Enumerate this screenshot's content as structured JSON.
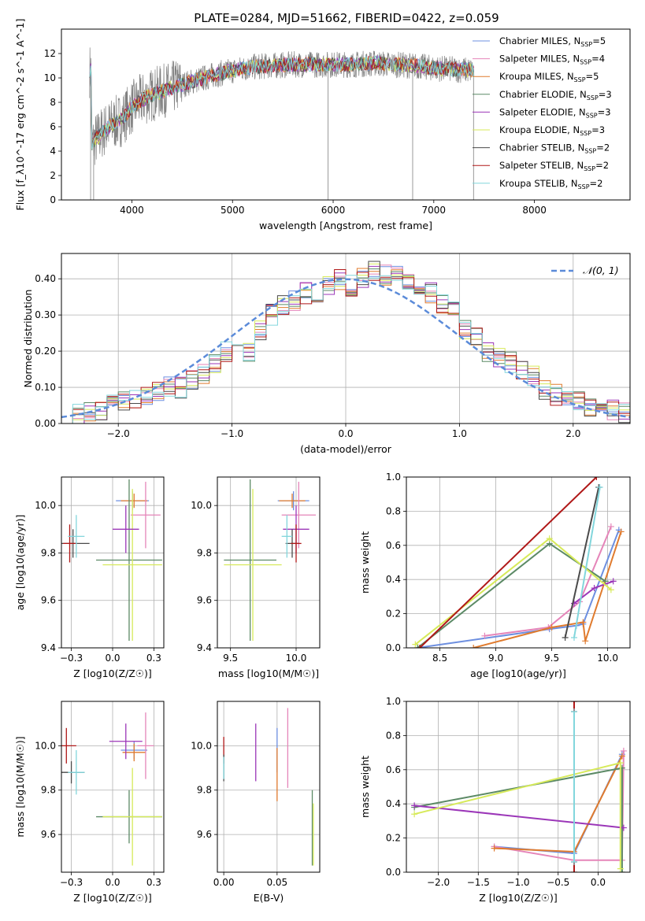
{
  "figure_title": "PLATE=0284, MJD=51662, FIBERID=0422, z=0.059",
  "colors": {
    "Chabrier MILES": "#6d8fe0",
    "Salpeter MILES": "#e585b9",
    "Kroupa MILES": "#e07b2e",
    "Chabrier ELODIE": "#5c8a66",
    "Salpeter ELODIE": "#9b36b8",
    "Kroupa ELODIE": "#d7ea5a",
    "Chabrier STELIB": "#4a4a4a",
    "Salpeter STELIB": "#b01818",
    "Kroupa STELIB": "#82d6dc",
    "data": "#808080",
    "normal": "#5b8bd9"
  },
  "chart_data": [
    {
      "id": "spectrum",
      "type": "line",
      "xlabel": "wavelength [Angstrom, rest frame]",
      "ylabel": "Flux [f_λ10^-17 erg cm^-2 s^-1 A^-1]",
      "xlim": [
        3300,
        8950
      ],
      "ylim": [
        0,
        14
      ],
      "xticks": [
        4000,
        5000,
        6000,
        7000,
        8000
      ],
      "yticks": [
        0,
        2,
        4,
        6,
        8,
        10,
        12
      ],
      "legend_position": "top-right",
      "legend": [
        {
          "model": "Chabrier MILES",
          "label": "Chabrier MILES, N",
          "nssp": "=5"
        },
        {
          "model": "Salpeter MILES",
          "label": "Salpeter MILES, N",
          "nssp": "=4"
        },
        {
          "model": "Kroupa MILES",
          "label": "Kroupa MILES, N",
          "nssp": "=5"
        },
        {
          "model": "Chabrier ELODIE",
          "label": "Chabrier ELODIE, N",
          "nssp": "=3"
        },
        {
          "model": "Salpeter ELODIE",
          "label": "Salpeter ELODIE, N",
          "nssp": "=3"
        },
        {
          "model": "Kroupa ELODIE",
          "label": "Kroupa ELODIE, N",
          "nssp": "=3"
        },
        {
          "model": "Chabrier STELIB",
          "label": "Chabrier STELIB, N",
          "nssp": "=2"
        },
        {
          "model": "Salpeter STELIB",
          "label": "Salpeter STELIB, N",
          "nssp": "=2"
        },
        {
          "model": "Kroupa STELIB",
          "label": "Kroupa STELIB, N",
          "nssp": "=2"
        }
      ],
      "continuum": {
        "x": [
          3600,
          3700,
          3800,
          3900,
          4000,
          4100,
          4200,
          4400,
          4600,
          4800,
          5000,
          5200,
          5400,
          5600,
          5800,
          6000,
          6200,
          6400,
          6600,
          6800,
          7000,
          7200,
          7400
        ],
        "y": [
          4.6,
          5.5,
          6.2,
          6.6,
          7.6,
          8.2,
          8.6,
          9.2,
          9.7,
          10.2,
          10.6,
          10.9,
          11.0,
          11.1,
          11.1,
          11.1,
          11.1,
          11.2,
          11.1,
          11.0,
          10.8,
          10.7,
          10.6
        ]
      },
      "data_range": [
        3580,
        7400
      ],
      "data_spikes": [
        {
          "x": 3590,
          "y": 0
        },
        {
          "x": 3620,
          "y": 0
        },
        {
          "x": 5950,
          "y": 0
        },
        {
          "x": 6790,
          "y": 0
        },
        {
          "x": 7395,
          "y": 0
        }
      ]
    },
    {
      "id": "residuals",
      "type": "area",
      "xlabel": "(data-model)/error",
      "ylabel": "Normed distribution",
      "xlim": [
        -2.5,
        2.5
      ],
      "ylim": [
        0,
        0.47
      ],
      "xticks": [
        -2,
        -1,
        0,
        1,
        2
      ],
      "yticks": [
        0.0,
        0.1,
        0.2,
        0.3,
        0.4
      ],
      "legend_position": "top-right",
      "normal_label": "𝒩(0, 1)",
      "bin_width": 0.1,
      "bin_start": -2.5,
      "hist_base": [
        0.02,
        0.025,
        0.03,
        0.04,
        0.05,
        0.06,
        0.07,
        0.08,
        0.09,
        0.1,
        0.1,
        0.12,
        0.14,
        0.17,
        0.2,
        0.22,
        0.2,
        0.26,
        0.3,
        0.33,
        0.34,
        0.36,
        0.35,
        0.38,
        0.4,
        0.38,
        0.4,
        0.42,
        0.41,
        0.42,
        0.4,
        0.37,
        0.36,
        0.33,
        0.31,
        0.26,
        0.24,
        0.2,
        0.18,
        0.17,
        0.15,
        0.13,
        0.09,
        0.08,
        0.07,
        0.06,
        0.05,
        0.04,
        0.035,
        0.03
      ]
    },
    {
      "id": "age-vs-metallicity",
      "type": "scatter",
      "xlabel": "Z [log10(Z/Z☉)]",
      "ylabel": "age [log10(age/yr)]",
      "xlim": [
        -0.31,
        0.31
      ],
      "ylim": [
        9.4,
        10.12
      ],
      "xticks": [
        -0.25,
        0.0,
        0.25
      ],
      "yticks": [
        9.4,
        9.6,
        9.8,
        10.0
      ],
      "points": [
        {
          "model": "Chabrier MILES",
          "x": 0.12,
          "y": 10.02,
          "xerr": 0.1,
          "yerr": 0.04
        },
        {
          "model": "Kroupa MILES",
          "x": 0.13,
          "y": 10.02,
          "xerr": 0.08,
          "yerr": 0.03
        },
        {
          "model": "Salpeter MILES",
          "x": 0.2,
          "y": 9.96,
          "xerr": 0.09,
          "yerr": 0.14
        },
        {
          "model": "Chabrier ELODIE",
          "x": 0.1,
          "y": 9.77,
          "xerr": 0.2,
          "yerr": 0.34
        },
        {
          "model": "Kroupa ELODIE",
          "x": 0.12,
          "y": 9.75,
          "xerr": 0.18,
          "yerr": 0.32
        },
        {
          "model": "Salpeter ELODIE",
          "x": 0.08,
          "y": 9.9,
          "xerr": 0.08,
          "yerr": 0.1
        },
        {
          "model": "Chabrier STELIB",
          "x": -0.24,
          "y": 9.84,
          "xerr": 0.1,
          "yerr": 0.06
        },
        {
          "model": "Salpeter STELIB",
          "x": -0.26,
          "y": 9.84,
          "xerr": 0.04,
          "yerr": 0.08
        },
        {
          "model": "Kroupa STELIB",
          "x": -0.22,
          "y": 9.87,
          "xerr": 0.05,
          "yerr": 0.09
        }
      ]
    },
    {
      "id": "age-vs-mass",
      "type": "scatter",
      "xlabel": "mass [log10(M/M☉)]",
      "ylabel": "",
      "xlim": [
        9.4,
        10.18
      ],
      "ylim": [
        9.4,
        10.12
      ],
      "xticks": [
        9.5,
        10.0
      ],
      "yticks": [
        9.4,
        9.6,
        9.8,
        10.0
      ],
      "points": [
        {
          "model": "Chabrier MILES",
          "x": 9.98,
          "y": 10.02,
          "xerr": 0.12,
          "yerr": 0.04
        },
        {
          "model": "Kroupa MILES",
          "x": 9.97,
          "y": 10.02,
          "xerr": 0.1,
          "yerr": 0.03
        },
        {
          "model": "Salpeter MILES",
          "x": 10.02,
          "y": 9.96,
          "xerr": 0.13,
          "yerr": 0.14
        },
        {
          "model": "Chabrier ELODIE",
          "x": 9.65,
          "y": 9.77,
          "xerr": 0.2,
          "yerr": 0.34
        },
        {
          "model": "Kroupa ELODIE",
          "x": 9.67,
          "y": 9.75,
          "xerr": 0.22,
          "yerr": 0.32
        },
        {
          "model": "Salpeter ELODIE",
          "x": 10.0,
          "y": 9.9,
          "xerr": 0.1,
          "yerr": 0.1
        },
        {
          "model": "Chabrier STELIB",
          "x": 9.97,
          "y": 9.84,
          "xerr": 0.05,
          "yerr": 0.06
        },
        {
          "model": "Salpeter STELIB",
          "x": 10.0,
          "y": 9.84,
          "xerr": 0.04,
          "yerr": 0.08
        },
        {
          "model": "Kroupa STELIB",
          "x": 9.93,
          "y": 9.87,
          "xerr": 0.04,
          "yerr": 0.09
        }
      ]
    },
    {
      "id": "weight-vs-age",
      "type": "line",
      "xlabel": "age [log10(age/yr)]",
      "ylabel": "mass weight",
      "xlim": [
        8.2,
        10.2
      ],
      "ylim": [
        0,
        1
      ],
      "xticks": [
        8.5,
        9.0,
        9.5,
        10.0
      ],
      "yticks": [
        0.0,
        0.2,
        0.4,
        0.6,
        0.8,
        1.0
      ],
      "series": [
        {
          "model": "Chabrier MILES",
          "x": [
            8.3,
            9.48,
            9.72,
            9.78,
            10.1
          ],
          "y": [
            0.0,
            0.11,
            0.13,
            0.14,
            0.69
          ]
        },
        {
          "model": "Salpeter MILES",
          "x": [
            8.9,
            9.47,
            9.75,
            10.03
          ],
          "y": [
            0.07,
            0.12,
            0.27,
            0.71
          ]
        },
        {
          "model": "Kroupa MILES",
          "x": [
            8.8,
            9.5,
            9.78,
            9.8,
            10.12
          ],
          "y": [
            0.0,
            0.12,
            0.15,
            0.04,
            0.68
          ]
        },
        {
          "model": "Chabrier ELODIE",
          "x": [
            8.3,
            9.48,
            9.98
          ],
          "y": [
            0.0,
            0.61,
            0.39
          ]
        },
        {
          "model": "Salpeter ELODIE",
          "x": [
            9.7,
            9.88,
            10.05
          ],
          "y": [
            0.26,
            0.35,
            0.39
          ]
        },
        {
          "model": "Kroupa ELODIE",
          "x": [
            8.28,
            9.48,
            10.03
          ],
          "y": [
            0.02,
            0.64,
            0.34
          ]
        },
        {
          "model": "Chabrier STELIB",
          "x": [
            9.62,
            9.92
          ],
          "y": [
            0.06,
            0.94
          ]
        },
        {
          "model": "Salpeter STELIB",
          "x": [
            8.32,
            9.9
          ],
          "y": [
            0.0,
            1.0
          ]
        },
        {
          "model": "Kroupa STELIB",
          "x": [
            9.7,
            9.93
          ],
          "y": [
            0.06,
            0.94
          ]
        }
      ]
    },
    {
      "id": "mass-vs-metallicity",
      "type": "scatter",
      "xlabel": "Z [log10(Z/Z☉)]",
      "ylabel": "mass [log10(M/M☉)]",
      "xlim": [
        -0.31,
        0.31
      ],
      "ylim": [
        9.43,
        10.2
      ],
      "xticks": [
        -0.25,
        0.0,
        0.25
      ],
      "yticks": [
        9.6,
        9.8,
        10.0
      ],
      "points": [
        {
          "model": "Chabrier MILES",
          "x": 0.13,
          "y": 9.98,
          "xerr": 0.08,
          "yerr": 0.04
        },
        {
          "model": "Kroupa MILES",
          "x": 0.13,
          "y": 9.97,
          "xerr": 0.07,
          "yerr": 0.04
        },
        {
          "model": "Salpeter MILES",
          "x": 0.2,
          "y": 10.0,
          "xerr": 0.05,
          "yerr": 0.15
        },
        {
          "model": "Chabrier ELODIE",
          "x": 0.1,
          "y": 9.68,
          "xerr": 0.2,
          "yerr": 0.12
        },
        {
          "model": "Kroupa ELODIE",
          "x": 0.12,
          "y": 9.68,
          "xerr": 0.18,
          "yerr": 0.22
        },
        {
          "model": "Salpeter ELODIE",
          "x": 0.08,
          "y": 10.02,
          "xerr": 0.1,
          "yerr": 0.08
        },
        {
          "model": "Chabrier STELIB",
          "x": -0.25,
          "y": 9.88,
          "xerr": 0.08,
          "yerr": 0.05
        },
        {
          "model": "Salpeter STELIB",
          "x": -0.28,
          "y": 10.0,
          "xerr": 0.06,
          "yerr": 0.08
        },
        {
          "model": "Kroupa STELIB",
          "x": -0.22,
          "y": 9.88,
          "xerr": 0.05,
          "yerr": 0.1
        }
      ]
    },
    {
      "id": "mass-vs-extinction",
      "type": "scatter",
      "xlabel": "E(B-V)",
      "ylabel": "",
      "xlim": [
        -0.006,
        0.09
      ],
      "ylim": [
        9.43,
        10.2
      ],
      "xticks": [
        0.0,
        0.05
      ],
      "yticks": [
        9.6,
        9.8,
        10.0
      ],
      "points": [
        {
          "model": "Chabrier MILES",
          "x": 0.05,
          "y": 9.98,
          "xerr": 0,
          "yerr": 0.1
        },
        {
          "model": "Salpeter MILES",
          "x": 0.06,
          "y": 9.99,
          "xerr": 0,
          "yerr": 0.18
        },
        {
          "model": "Kroupa MILES",
          "x": 0.05,
          "y": 9.87,
          "xerr": 0,
          "yerr": 0.12
        },
        {
          "model": "Salpeter ELODIE",
          "x": 0.03,
          "y": 9.97,
          "xerr": 0,
          "yerr": 0.13
        },
        {
          "model": "Chabrier ELODIE",
          "x": 0.083,
          "y": 9.63,
          "xerr": 0,
          "yerr": 0.17
        },
        {
          "model": "Kroupa ELODIE",
          "x": 0.084,
          "y": 9.6,
          "xerr": 0,
          "yerr": 0.14
        },
        {
          "model": "Salpeter STELIB",
          "x": 0.0,
          "y": 9.98,
          "xerr": 0,
          "yerr": 0.06
        },
        {
          "model": "Chabrier STELIB",
          "x": 0.0,
          "y": 9.9,
          "xerr": 0,
          "yerr": 0.06
        },
        {
          "model": "Kroupa STELIB",
          "x": 0.0,
          "y": 9.9,
          "xerr": 0,
          "yerr": 0.05
        }
      ]
    },
    {
      "id": "weight-vs-metallicity",
      "type": "line",
      "xlabel": "Z [log10(Z/Z☉)]",
      "ylabel": "mass weight",
      "xlim": [
        -2.4,
        0.4
      ],
      "ylim": [
        0,
        1
      ],
      "xticks": [
        -2.0,
        -1.5,
        -1.0,
        -0.5,
        0.0
      ],
      "yticks": [
        0.0,
        0.2,
        0.4,
        0.6,
        0.8,
        1.0
      ],
      "series": [
        {
          "model": "Chabrier MILES",
          "x": [
            -1.3,
            -0.3,
            0.3
          ],
          "y": [
            0.15,
            0.11,
            0.69
          ]
        },
        {
          "model": "Salpeter MILES",
          "x": [
            -1.3,
            -0.3,
            0.3,
            0.32
          ],
          "y": [
            0.15,
            0.07,
            0.07,
            0.71
          ]
        },
        {
          "model": "Kroupa MILES",
          "x": [
            -1.3,
            -0.3,
            0.3
          ],
          "y": [
            0.14,
            0.12,
            0.68
          ]
        },
        {
          "model": "Chabrier ELODIE",
          "x": [
            -2.3,
            0.3,
            0.3
          ],
          "y": [
            0.38,
            0.61,
            0.0
          ]
        },
        {
          "model": "Salpeter ELODIE",
          "x": [
            -2.3,
            0.32
          ],
          "y": [
            0.39,
            0.26
          ]
        },
        {
          "model": "Kroupa ELODIE",
          "x": [
            -2.3,
            0.28,
            0.28
          ],
          "y": [
            0.34,
            0.64,
            0.02
          ]
        },
        {
          "model": "Chabrier STELIB",
          "x": [
            -0.3,
            -0.3
          ],
          "y": [
            0.06,
            0.94
          ]
        },
        {
          "model": "Salpeter STELIB",
          "x": [
            -0.3,
            -0.3
          ],
          "y": [
            0.0,
            1.0
          ]
        },
        {
          "model": "Kroupa STELIB",
          "x": [
            -0.3,
            -0.3
          ],
          "y": [
            0.06,
            0.94
          ]
        }
      ]
    }
  ]
}
